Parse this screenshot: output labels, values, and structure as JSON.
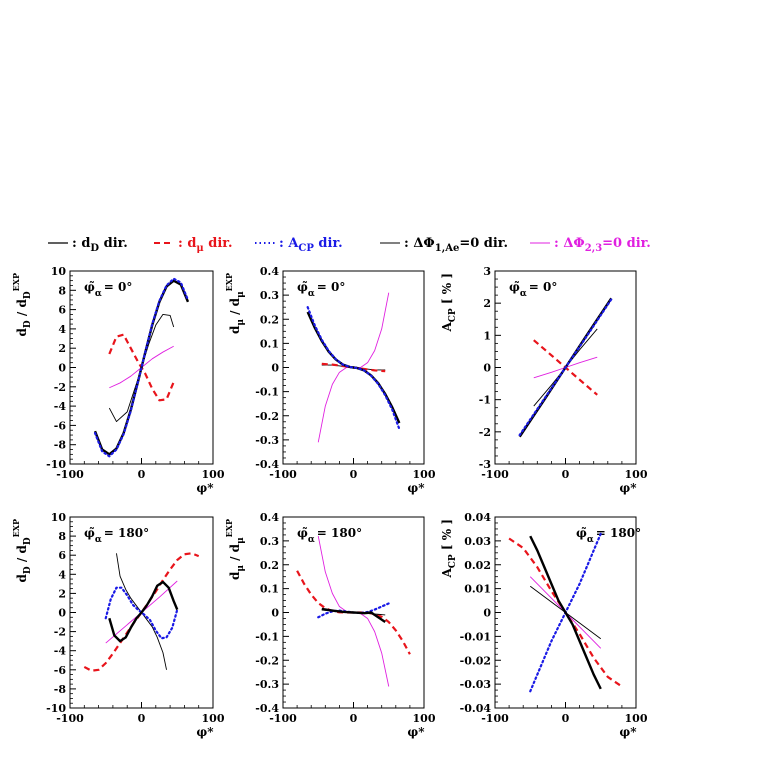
{
  "legend": [
    {
      "prefix": "—",
      "text": ": d",
      "sub": "D",
      "suffix": " dir.",
      "color": "#000000",
      "dash": "solid",
      "width": 1.2
    },
    {
      "prefix": "– –",
      "text": ": d",
      "sub": "μ",
      "suffix": " dir.",
      "color": "#e8141b",
      "dash": "dashed",
      "width": 2
    },
    {
      "prefix": "·····",
      "text": ": A",
      "sub": "CP",
      "suffix": " dir.",
      "color": "#1a1ae6",
      "dash": "dotted",
      "width": 2
    },
    {
      "prefix": "—",
      "text": ": ΔΦ",
      "sub": "1,Ae",
      "suffix": "=0 dir.",
      "color": "#000000",
      "dash": "solid",
      "width": 1
    },
    {
      "prefix": "—",
      "text": ": ΔΦ",
      "sub": "2,3",
      "suffix": "=0 dir.",
      "color": "#e020e0",
      "dash": "solid",
      "width": 1
    }
  ],
  "colors": {
    "dD": "#000000",
    "dmu": "#e8141b",
    "acp": "#1a1ae6",
    "acp_overlap": "#0d0d55",
    "dphi1": "#000000",
    "dphi23": "#e020e0"
  },
  "chart_data": [
    {
      "type": "line",
      "id": "top-dD",
      "ylabel_main": "d",
      "ylabel_sub": "D",
      "ylabel_tail": " / d",
      "ylabel_tail_sub": "D",
      "ylabel_sup": "EXP",
      "xlabel": "φ*",
      "annotation_main": "φ̃",
      "annotation_sub": "α",
      "annotation_value": "= 0°",
      "xlim": [
        -100,
        100
      ],
      "ylim": [
        -10,
        10
      ],
      "xticks": [
        -100,
        0,
        100
      ],
      "yticks": [
        -10,
        -8,
        -6,
        -4,
        -2,
        0,
        2,
        4,
        6,
        8,
        10
      ],
      "series": [
        {
          "role": "dphi1",
          "x": [
            -45,
            -35,
            -20,
            -5,
            0,
            10,
            20,
            30,
            40,
            45
          ],
          "y": [
            -4.2,
            -5.6,
            -4.6,
            -1.2,
            0,
            2.4,
            4.4,
            5.5,
            5.4,
            4.2
          ]
        },
        {
          "role": "dmu",
          "x": [
            -45,
            -35,
            -25,
            -15,
            -5,
            0,
            5,
            15,
            25,
            35,
            45
          ],
          "y": [
            1.4,
            3.2,
            3.4,
            2.0,
            0.6,
            0,
            -0.6,
            -2.2,
            -3.4,
            -3.3,
            -1.5
          ]
        },
        {
          "role": "dphi23",
          "x": [
            -45,
            -30,
            -15,
            0,
            15,
            30,
            45
          ],
          "y": [
            -2.1,
            -1.6,
            -0.9,
            0,
            0.9,
            1.6,
            2.2
          ]
        },
        {
          "role": "dD",
          "x": [
            -65,
            -55,
            -45,
            -35,
            -25,
            -15,
            -5,
            0,
            5,
            15,
            25,
            35,
            45,
            55,
            65
          ],
          "y": [
            -6.6,
            -8.5,
            -9.0,
            -8.4,
            -6.8,
            -4.4,
            -1.5,
            0,
            1.5,
            4.4,
            6.8,
            8.4,
            9.0,
            8.6,
            6.8
          ]
        },
        {
          "role": "acp",
          "x": [
            -65,
            -55,
            -45,
            -35,
            -25,
            -15,
            -5,
            0,
            5,
            15,
            25,
            35,
            45,
            55,
            65
          ],
          "y": [
            -6.8,
            -8.7,
            -9.2,
            -8.5,
            -6.9,
            -4.5,
            -1.5,
            0,
            1.5,
            4.5,
            6.9,
            8.5,
            9.2,
            8.8,
            7.0
          ]
        }
      ]
    },
    {
      "type": "line",
      "id": "top-dmu",
      "ylabel_main": "d",
      "ylabel_sub": "μ",
      "ylabel_tail": " / d",
      "ylabel_tail_sub": "μ",
      "ylabel_sup": "EXP",
      "xlabel": "φ*",
      "annotation_main": "φ̃",
      "annotation_sub": "α",
      "annotation_value": "= 0°",
      "xlim": [
        -100,
        100
      ],
      "ylim": [
        -0.4,
        0.4
      ],
      "xticks": [
        -100,
        0,
        100
      ],
      "yticks": [
        -0.4,
        -0.3,
        -0.2,
        -0.1,
        0,
        0.1,
        0.2,
        0.3,
        0.4
      ],
      "series": [
        {
          "role": "dphi23",
          "x": [
            -50,
            -40,
            -30,
            -20,
            -10,
            0,
            10,
            20,
            30,
            40,
            50
          ],
          "y": [
            -0.31,
            -0.16,
            -0.07,
            -0.02,
            0,
            0,
            0,
            0.02,
            0.07,
            0.16,
            0.31
          ]
        },
        {
          "role": "dphi1",
          "x": [
            -45,
            -30,
            -15,
            0,
            15,
            30,
            45
          ],
          "y": [
            0.01,
            0.01,
            0.005,
            0,
            -0.005,
            -0.01,
            -0.01
          ]
        },
        {
          "role": "dmu",
          "x": [
            -45,
            -30,
            -15,
            0,
            15,
            30,
            45
          ],
          "y": [
            0.015,
            0.012,
            0.006,
            0,
            -0.006,
            -0.012,
            -0.015
          ]
        },
        {
          "role": "dD",
          "x": [
            -65,
            -55,
            -45,
            -35,
            -25,
            -15,
            -5,
            0,
            5,
            15,
            25,
            35,
            45,
            55,
            65
          ],
          "y": [
            0.23,
            0.165,
            0.11,
            0.065,
            0.033,
            0.012,
            0.002,
            0,
            -0.002,
            -0.012,
            -0.033,
            -0.065,
            -0.11,
            -0.165,
            -0.23
          ]
        },
        {
          "role": "acp",
          "x": [
            -65,
            -55,
            -45,
            -35,
            -25,
            -15,
            -5,
            0,
            5,
            15,
            25,
            35,
            45,
            55,
            65
          ],
          "y": [
            0.25,
            0.175,
            0.115,
            0.068,
            0.034,
            0.012,
            0.002,
            0,
            -0.002,
            -0.012,
            -0.034,
            -0.068,
            -0.115,
            -0.175,
            -0.255
          ]
        }
      ]
    },
    {
      "type": "line",
      "id": "top-acp",
      "ylabel_main": "A",
      "ylabel_sub": "CP",
      "ylabel_tail": " [ % ]",
      "ylabel_tail_sub": "",
      "ylabel_sup": "",
      "xlabel": "φ*",
      "annotation_main": "φ̃",
      "annotation_sub": "α",
      "annotation_value": "= 0°",
      "xlim": [
        -100,
        100
      ],
      "ylim": [
        -3,
        3
      ],
      "xticks": [
        -100,
        0,
        100
      ],
      "yticks": [
        -3,
        -2,
        -1,
        0,
        1,
        2,
        3
      ],
      "series": [
        {
          "role": "dphi1",
          "x": [
            -45,
            -20,
            0,
            20,
            45
          ],
          "y": [
            -1.2,
            -0.55,
            0,
            0.55,
            1.2
          ]
        },
        {
          "role": "dmu",
          "x": [
            -45,
            -20,
            0,
            20,
            45
          ],
          "y": [
            0.85,
            0.38,
            0,
            -0.38,
            -0.85
          ]
        },
        {
          "role": "dphi23",
          "x": [
            -45,
            -20,
            0,
            20,
            45
          ],
          "y": [
            -0.32,
            -0.15,
            0,
            0.15,
            0.32
          ]
        },
        {
          "role": "dD",
          "x": [
            -65,
            -30,
            0,
            30,
            65
          ],
          "y": [
            -2.15,
            -1.0,
            0,
            1.0,
            2.15
          ]
        },
        {
          "role": "acp",
          "x": [
            -65,
            -30,
            0,
            30,
            65
          ],
          "y": [
            -2.1,
            -0.97,
            0,
            0.97,
            2.12
          ]
        }
      ]
    },
    {
      "type": "line",
      "id": "bottom-dD",
      "ylabel_main": "d",
      "ylabel_sub": "D",
      "ylabel_tail": " / d",
      "ylabel_tail_sub": "D",
      "ylabel_sup": "EXP",
      "xlabel": "φ*",
      "annotation_main": "φ̃",
      "annotation_sub": "α",
      "annotation_value": "= 180°",
      "xlim": [
        -100,
        100
      ],
      "ylim": [
        -10,
        10
      ],
      "xticks": [
        -100,
        0,
        100
      ],
      "yticks": [
        -10,
        -8,
        -6,
        -4,
        -2,
        0,
        2,
        4,
        6,
        8,
        10
      ],
      "series": [
        {
          "role": "dmu",
          "x": [
            -80,
            -70,
            -60,
            -50,
            -40,
            -30,
            -20,
            -10,
            0,
            10,
            20,
            30,
            40,
            50,
            60,
            70,
            80
          ],
          "y": [
            -5.7,
            -6.1,
            -6.0,
            -5.3,
            -4.3,
            -3.2,
            -2.1,
            -1.0,
            0,
            1.1,
            2.2,
            3.4,
            4.5,
            5.5,
            6.1,
            6.2,
            5.9
          ]
        },
        {
          "role": "dphi1",
          "x": [
            -35,
            -30,
            -22,
            -15,
            -7,
            0,
            7,
            15,
            22,
            30,
            35
          ],
          "y": [
            6.2,
            3.8,
            2.4,
            1.5,
            0.7,
            0,
            -0.7,
            -1.5,
            -2.6,
            -4.2,
            -6.0
          ]
        },
        {
          "role": "dphi23",
          "x": [
            -50,
            -25,
            0,
            25,
            50
          ],
          "y": [
            -3.2,
            -1.6,
            0,
            1.6,
            3.3
          ]
        },
        {
          "role": "acp",
          "x": [
            -50,
            -43,
            -35,
            -28,
            -20,
            -12,
            -5,
            0,
            5,
            12,
            20,
            28,
            35,
            43,
            50
          ],
          "y": [
            -0.6,
            1.4,
            2.6,
            2.6,
            1.8,
            0.8,
            0.3,
            0,
            -0.3,
            -0.8,
            -1.9,
            -2.7,
            -2.6,
            -1.6,
            0.3
          ]
        },
        {
          "role": "dD",
          "x": [
            -45,
            -38,
            -30,
            -22,
            -15,
            -7,
            0,
            7,
            15,
            22,
            30,
            38,
            45,
            50
          ],
          "y": [
            -0.6,
            -2.4,
            -3.0,
            -2.6,
            -1.6,
            -0.6,
            0,
            0.7,
            1.7,
            2.8,
            3.2,
            2.6,
            1.2,
            0.3
          ]
        }
      ]
    },
    {
      "type": "line",
      "id": "bottom-dmu",
      "ylabel_main": "d",
      "ylabel_sub": "μ",
      "ylabel_tail": " / d",
      "ylabel_tail_sub": "μ",
      "ylabel_sup": "EXP",
      "xlabel": "φ*",
      "annotation_main": "φ̃",
      "annotation_sub": "α",
      "annotation_value": "= 180°",
      "xlim": [
        -100,
        100
      ],
      "ylim": [
        -0.4,
        0.4
      ],
      "xticks": [
        -100,
        0,
        100
      ],
      "yticks": [
        -0.4,
        -0.3,
        -0.2,
        -0.1,
        0,
        0.1,
        0.2,
        0.3,
        0.4
      ],
      "series": [
        {
          "role": "dphi23",
          "x": [
            -50,
            -40,
            -30,
            -20,
            -10,
            0,
            10,
            20,
            30,
            40,
            50
          ],
          "y": [
            0.32,
            0.17,
            0.08,
            0.025,
            0.004,
            0,
            -0.004,
            -0.025,
            -0.08,
            -0.17,
            -0.31
          ]
        },
        {
          "role": "dmu",
          "x": [
            -80,
            -70,
            -60,
            -50,
            -40,
            -30,
            -20,
            -10,
            0,
            10,
            20,
            30,
            40,
            50,
            60,
            70,
            80
          ],
          "y": [
            0.175,
            0.12,
            0.075,
            0.04,
            0.018,
            0.006,
            0.001,
            0,
            0,
            0,
            -0.001,
            -0.006,
            -0.018,
            -0.04,
            -0.075,
            -0.12,
            -0.175
          ]
        },
        {
          "role": "acp",
          "x": [
            -50,
            -40,
            -30,
            -20,
            -10,
            0,
            10,
            20,
            30,
            40,
            50
          ],
          "y": [
            -0.02,
            -0.005,
            0.005,
            0.008,
            0.004,
            0,
            -0.002,
            0.002,
            0.012,
            0.025,
            0.038
          ]
        },
        {
          "role": "dD",
          "x": [
            -45,
            -35,
            -25,
            -15,
            -5,
            0,
            5,
            15,
            25,
            35,
            45
          ],
          "y": [
            0.015,
            0.01,
            0.006,
            0.003,
            0.001,
            0,
            -0.001,
            -0.003,
            0.0,
            -0.02,
            -0.04
          ]
        },
        {
          "role": "dphi1",
          "x": [
            -45,
            -25,
            0,
            25,
            45
          ],
          "y": [
            0.01,
            0.005,
            0,
            -0.005,
            -0.01
          ]
        }
      ]
    },
    {
      "type": "line",
      "id": "bottom-acp",
      "ylabel_main": "A",
      "ylabel_sub": "CP",
      "ylabel_tail": " [ % ]",
      "ylabel_tail_sub": "",
      "ylabel_sup": "",
      "xlabel": "φ*",
      "annotation_main": "φ̃",
      "annotation_sub": "α",
      "annotation_value": "= 180°",
      "xlim": [
        -100,
        100
      ],
      "ylim": [
        -0.04,
        0.04
      ],
      "xticks": [
        -100,
        0,
        100
      ],
      "yticks": [
        -0.04,
        -0.03,
        -0.02,
        -0.01,
        0,
        0.01,
        0.02,
        0.03,
        0.04
      ],
      "series": [
        {
          "role": "dmu",
          "x": [
            -80,
            -60,
            -40,
            -20,
            0,
            20,
            40,
            60,
            80
          ],
          "y": [
            0.031,
            0.027,
            0.019,
            0.009,
            0,
            -0.009,
            -0.019,
            -0.027,
            -0.031
          ]
        },
        {
          "role": "acp",
          "x": [
            -50,
            -40,
            -30,
            -20,
            -10,
            0,
            10,
            20,
            30,
            40,
            50
          ],
          "y": [
            -0.033,
            -0.026,
            -0.019,
            -0.012,
            -0.006,
            0,
            0.006,
            0.012,
            0.019,
            0.026,
            0.033
          ]
        },
        {
          "role": "dphi23",
          "x": [
            -50,
            -25,
            0,
            25,
            50
          ],
          "y": [
            0.015,
            0.0075,
            0,
            -0.0075,
            -0.015
          ]
        },
        {
          "role": "dphi1",
          "x": [
            -50,
            -25,
            0,
            25,
            50
          ],
          "y": [
            0.011,
            0.0055,
            0,
            -0.0055,
            -0.011
          ]
        },
        {
          "role": "dD",
          "x": [
            -50,
            -40,
            -30,
            -20,
            -10,
            0,
            10,
            20,
            30,
            40,
            50
          ],
          "y": [
            0.032,
            0.026,
            0.019,
            0.012,
            0.005,
            0,
            -0.005,
            -0.012,
            -0.019,
            -0.026,
            -0.032
          ]
        }
      ]
    }
  ]
}
